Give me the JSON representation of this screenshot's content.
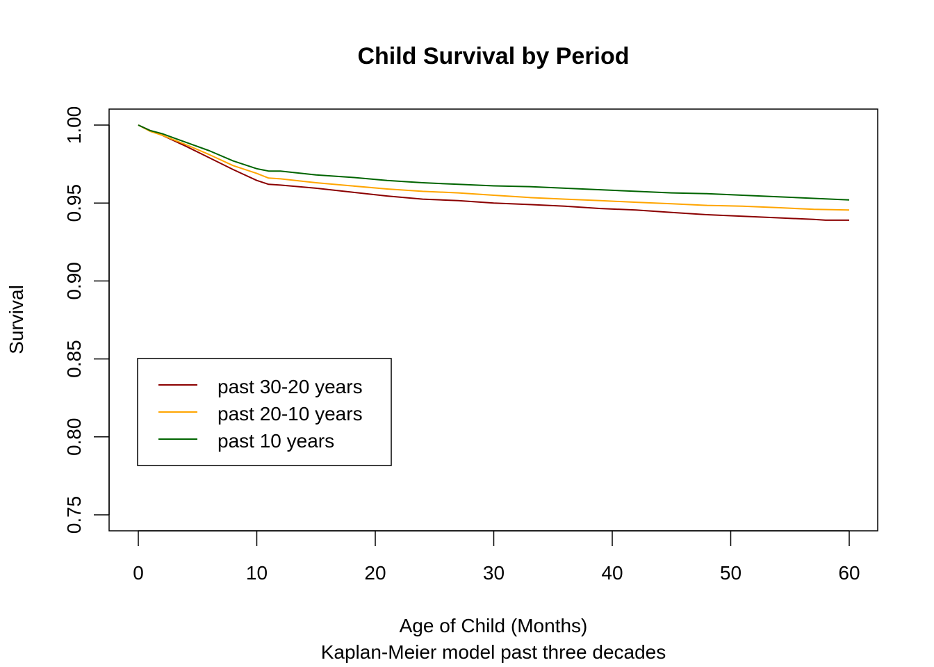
{
  "chart_data": {
    "type": "line",
    "title": "Child Survival by Period",
    "xlabel": "Age of Child (Months)",
    "subtitle": "Kaplan-Meier model past three decades",
    "ylabel": "Survival",
    "xlim": [
      0,
      60
    ],
    "ylim": [
      0.75,
      1.0
    ],
    "xticks": [
      0,
      10,
      20,
      30,
      40,
      50,
      60
    ],
    "xtick_labels": [
      "0",
      "10",
      "20",
      "30",
      "40",
      "50",
      "60"
    ],
    "yticks": [
      0.75,
      0.8,
      0.85,
      0.9,
      0.95,
      1.0
    ],
    "ytick_labels": [
      "0.75",
      "0.80",
      "0.85",
      "0.90",
      "0.95",
      "1.00"
    ],
    "grid": false,
    "legend_position": "bottom-left",
    "series": [
      {
        "name": "past 30-20 years",
        "color": "#8B0000",
        "x": [
          0,
          1,
          2,
          4,
          6,
          8,
          10,
          11,
          12,
          15,
          18,
          21,
          24,
          27,
          30,
          33,
          36,
          39,
          42,
          45,
          48,
          51,
          54,
          57,
          58,
          60
        ],
        "y": [
          1.0,
          0.9965,
          0.9935,
          0.9865,
          0.979,
          0.9715,
          0.9645,
          0.962,
          0.9615,
          0.9595,
          0.957,
          0.9545,
          0.9525,
          0.9515,
          0.95,
          0.949,
          0.948,
          0.9465,
          0.9455,
          0.944,
          0.9425,
          0.9415,
          0.9405,
          0.9395,
          0.939,
          0.939
        ]
      },
      {
        "name": "past 20-10 years",
        "color": "#FFA500",
        "x": [
          0,
          1,
          2,
          4,
          6,
          8,
          10,
          11,
          12,
          15,
          18,
          21,
          24,
          27,
          30,
          33,
          36,
          39,
          42,
          45,
          48,
          51,
          54,
          57,
          60
        ],
        "y": [
          1.0,
          0.996,
          0.9935,
          0.9875,
          0.981,
          0.974,
          0.969,
          0.966,
          0.9655,
          0.963,
          0.961,
          0.959,
          0.9575,
          0.9565,
          0.955,
          0.9535,
          0.9525,
          0.9515,
          0.9505,
          0.9495,
          0.9485,
          0.948,
          0.947,
          0.946,
          0.9455
        ]
      },
      {
        "name": "past 10 years",
        "color": "#006400",
        "x": [
          0,
          1,
          2,
          4,
          6,
          8,
          10,
          11,
          12,
          15,
          18,
          21,
          24,
          27,
          30,
          33,
          36,
          39,
          42,
          45,
          48,
          51,
          54,
          57,
          60
        ],
        "y": [
          1.0,
          0.9965,
          0.9945,
          0.989,
          0.9835,
          0.977,
          0.972,
          0.9705,
          0.9705,
          0.968,
          0.9665,
          0.9645,
          0.963,
          0.962,
          0.961,
          0.9605,
          0.9595,
          0.9585,
          0.9575,
          0.9565,
          0.956,
          0.955,
          0.954,
          0.953,
          0.952
        ]
      }
    ]
  }
}
